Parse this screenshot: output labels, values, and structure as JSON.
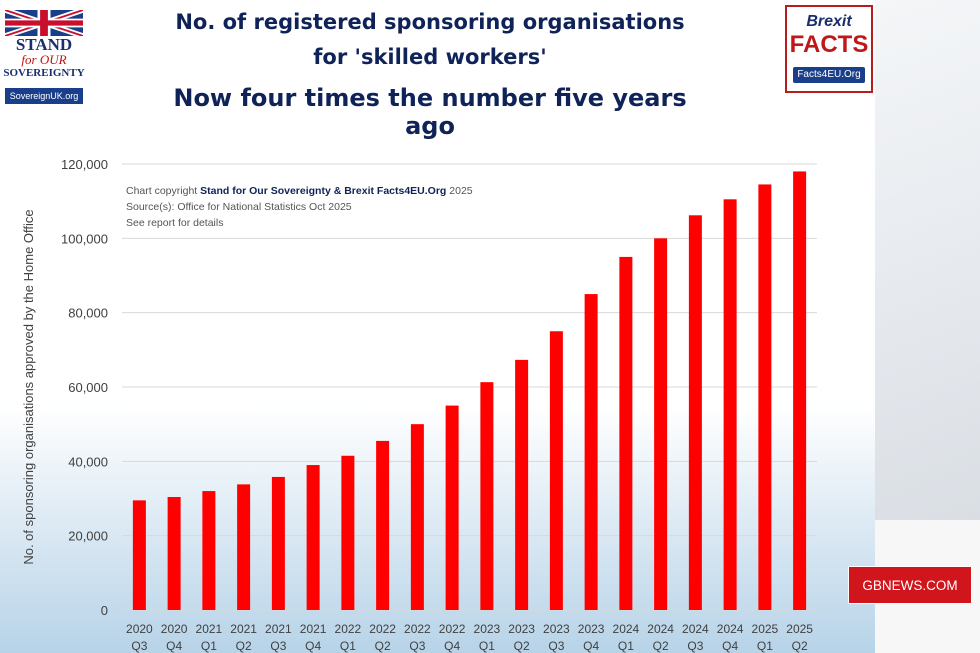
{
  "titles": {
    "line1": "No. of registered sponsoring organisations",
    "line2": "for 'skilled workers'",
    "line3": "Now four times the number five years ago"
  },
  "logo_left": {
    "line1": "STAND",
    "line2": "for OUR",
    "line3": "SOVEREIGNTY",
    "url": "SovereignUK.org"
  },
  "logo_right": {
    "line1": "Brexit",
    "line2": "FACTS",
    "url": "Facts4EU.Org"
  },
  "notes": {
    "copyright_prefix": "Chart copyright",
    "copyright_owner": "Stand for Our Sovereignty & Brexit Facts4EU.Org",
    "copyright_year": "2025",
    "source": "Source(s): Office for National Statistics Oct 2025",
    "report": "See report for details"
  },
  "broadcaster_badge": "GBNEWS.COM",
  "colors": {
    "bar": "#ff0000",
    "title": "#0f2358"
  },
  "chart_data": {
    "type": "bar",
    "ylabel": "No. of sponsoring organisations approved by the Home Office",
    "xlabel": "",
    "ylim": [
      0,
      120000
    ],
    "yticks": [
      "0",
      "20,000",
      "40,000",
      "60,000",
      "80,000",
      "100,000",
      "120,000"
    ],
    "grid": true,
    "categories": [
      [
        "2020",
        "Q3"
      ],
      [
        "2020",
        "Q4"
      ],
      [
        "2021",
        "Q1"
      ],
      [
        "2021",
        "Q2"
      ],
      [
        "2021",
        "Q3"
      ],
      [
        "2021",
        "Q4"
      ],
      [
        "2022",
        "Q1"
      ],
      [
        "2022",
        "Q2"
      ],
      [
        "2022",
        "Q3"
      ],
      [
        "2022",
        "Q4"
      ],
      [
        "2023",
        "Q1"
      ],
      [
        "2023",
        "Q2"
      ],
      [
        "2023",
        "Q3"
      ],
      [
        "2023",
        "Q4"
      ],
      [
        "2024",
        "Q1"
      ],
      [
        "2024",
        "Q2"
      ],
      [
        "2024",
        "Q3"
      ],
      [
        "2024",
        "Q4"
      ],
      [
        "2025",
        "Q1"
      ],
      [
        "2025",
        "Q2"
      ]
    ],
    "values": [
      29500,
      30400,
      32000,
      33800,
      35800,
      39000,
      41500,
      45500,
      50000,
      55000,
      61300,
      67300,
      75000,
      85000,
      95000,
      100000,
      106200,
      110500,
      114500,
      118000
    ]
  }
}
